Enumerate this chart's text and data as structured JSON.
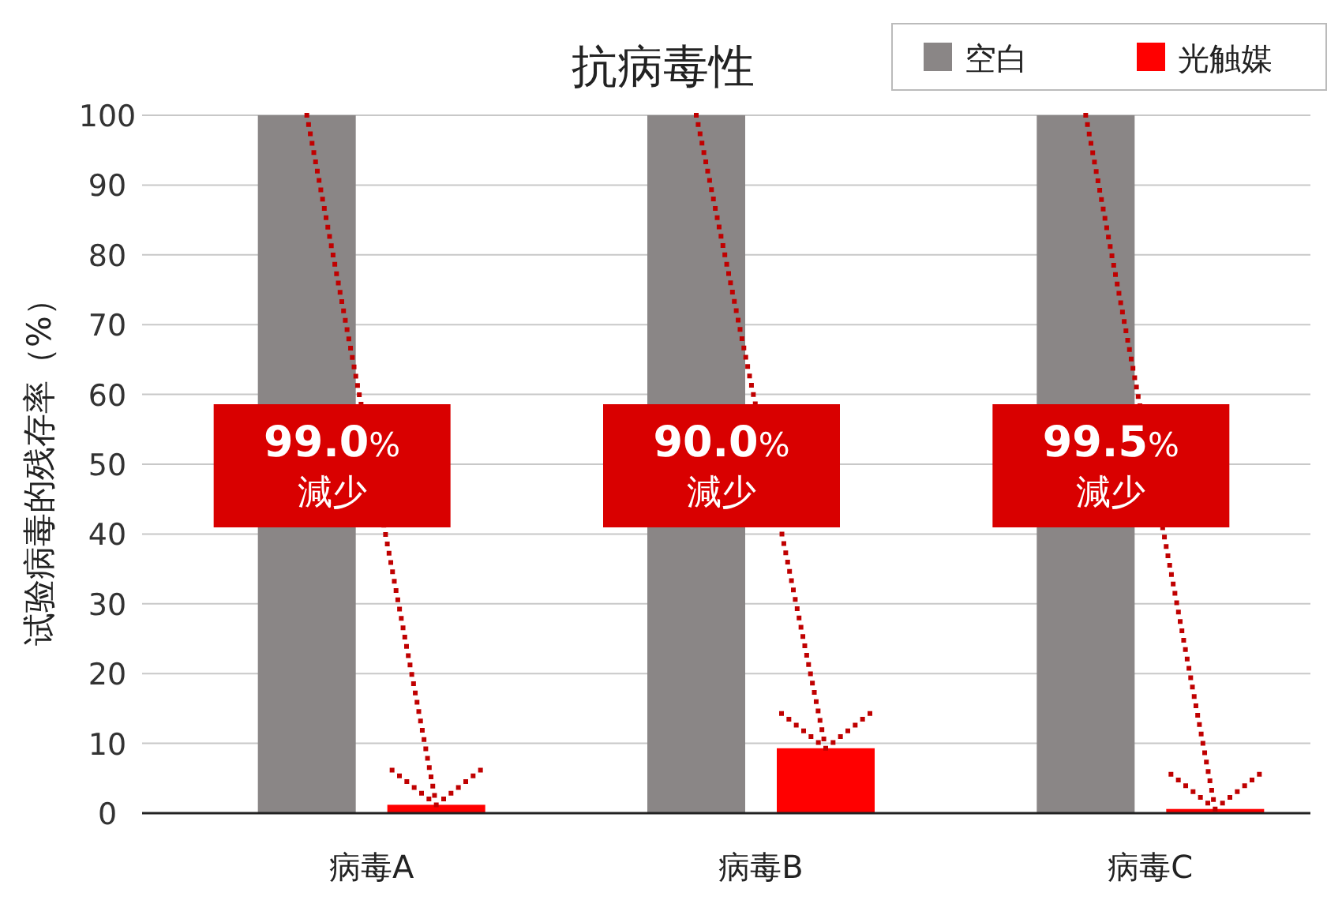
{
  "chart_data": {
    "type": "bar",
    "title": "抗病毒性",
    "ylabel": "试验病毒的残存率（%）",
    "categories": [
      "病毒A",
      "病毒B",
      "病毒C"
    ],
    "series": [
      {
        "name": "空白",
        "color": "#8a8686",
        "values": [
          100,
          100,
          100
        ]
      },
      {
        "name": "光触媒",
        "color": "#ff0000",
        "values": [
          1.2,
          9.3,
          0.6
        ]
      }
    ],
    "ylim": [
      0,
      100
    ],
    "yticks": [
      0,
      10,
      20,
      30,
      40,
      50,
      60,
      70,
      80,
      90,
      100
    ],
    "grid": "y",
    "legend": "top right",
    "annotations": [
      "**99.0**%\n減少",
      "**90.0**%\n減少",
      "**99.5**%\n減少"
    ]
  }
}
